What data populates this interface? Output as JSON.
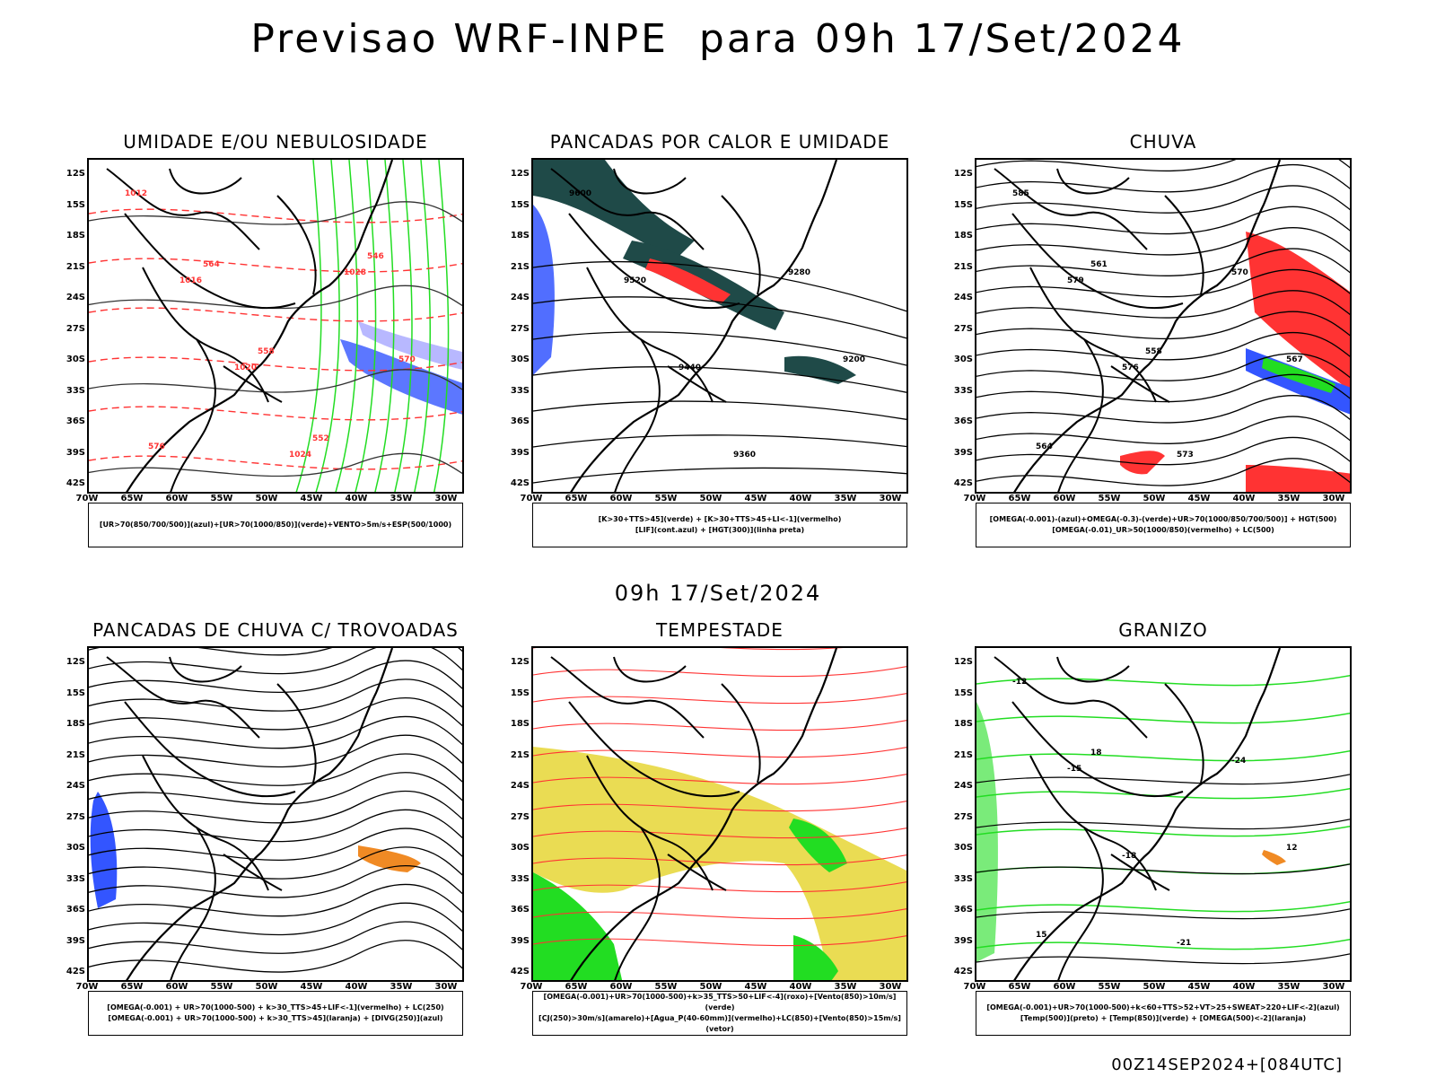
{
  "header": {
    "title": "Previsao WRF-INPE  para 09h 17/Set/2024"
  },
  "middle_label": "09h 17/Set/2024",
  "footer": "00Z14SEP2024+[084UTC]",
  "axes": {
    "lat_labels": [
      "12S",
      "15S",
      "18S",
      "21S",
      "24S",
      "27S",
      "30S",
      "33S",
      "36S",
      "39S",
      "42S"
    ],
    "lon_labels": [
      "70W",
      "65W",
      "60W",
      "55W",
      "50W",
      "45W",
      "40W",
      "35W",
      "30W"
    ]
  },
  "colors": {
    "coast": "#000000",
    "red": "#ff3333",
    "green": "#22dd22",
    "blue": "#3355ff",
    "violet": "#8888ff",
    "yellow": "#e8d840",
    "orange": "#f08a24",
    "darkgreen": "#1f4a48"
  },
  "panels": [
    {
      "id": "umidade",
      "title": "UMIDADE E/OU NEBULOSIDADE",
      "legend": [
        "[UR>70(850/700/500)](azul)+[UR>70(1000/850)](verde)+VENTO>5m/s+ESP(500/1000)"
      ],
      "contour_labels": [
        "1012",
        "1016",
        "1020",
        "1024",
        "1028",
        "570",
        "576",
        "564",
        "558",
        "552",
        "546"
      ]
    },
    {
      "id": "pancadas-calor",
      "title": "PANCADAS POR CALOR E UMIDADE",
      "legend": [
        "[K>30+TTS>45](verde) + [K>30+TTS>45+LI<-1](vermelho)",
        "[LIF](cont.azul) + [HGT(300)](linha preta)"
      ],
      "contour_labels": [
        "9600",
        "9520",
        "9440",
        "9360",
        "9280",
        "9200"
      ]
    },
    {
      "id": "chuva",
      "title": "CHUVA",
      "legend": [
        "[OMEGA(-0.001)-(azul)+OMEGA(-0.3)-(verde)+UR>70(1000/850/700/500)] + HGT(500)",
        "[OMEGA(-0.01)_UR>50(1000/850)(vermelho) + LC(500)"
      ],
      "contour_labels": [
        "585",
        "579",
        "576",
        "573",
        "570",
        "567",
        "564",
        "561",
        "558"
      ]
    },
    {
      "id": "trovoadas",
      "title": "PANCADAS DE CHUVA C/ TROVOADAS",
      "legend": [
        "[OMEGA(-0.001) + UR>70(1000-500) + k>30_TTS>45+LIF<-1](vermelho) + LC(250)",
        "[OMEGA(-0.001) + UR>70(1000-500) + k>30_TTS>45](laranja) + [DIVG(250)](azul)"
      ],
      "contour_labels": []
    },
    {
      "id": "tempestade",
      "title": "TEMPESTADE",
      "legend": [
        "[OMEGA(-0.001)+UR>70(1000-500)+k>35_TTS>50+LIF<-4](roxo)+[Vento(850)>10m/s](verde)",
        "[CJ(250)>30m/s](amarelo)+[Agua_P(40-60mm)](vermelho)+LC(850)+[Vento(850)>15m/s](vetor)"
      ],
      "contour_labels": []
    },
    {
      "id": "granizo",
      "title": "GRANIZO",
      "legend": [
        "[OMEGA(-0.001)+UR>70(1000-500)+k<60+TTS>52+VT>25+SWEAT>220+LIF<-2](azul)",
        "[Temp(500)](preto) + [Temp(850)](verde) + [OMEGA(500)<-2](laranja)"
      ],
      "contour_labels": [
        "-12",
        "-15",
        "-18",
        "-21",
        "-24",
        "12",
        "15",
        "18"
      ]
    }
  ]
}
